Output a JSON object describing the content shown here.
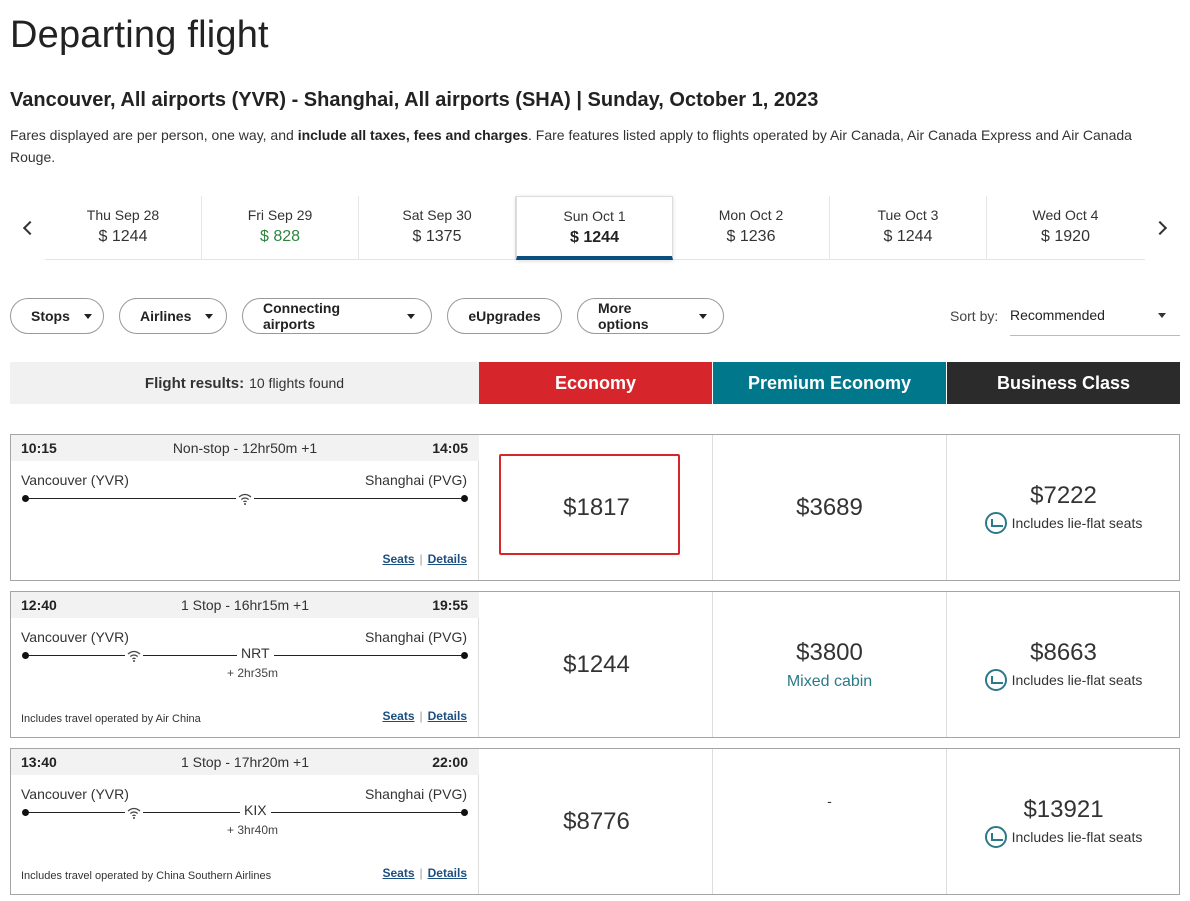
{
  "page": {
    "title": "Departing flight",
    "route_heading": "Vancouver, All airports (YVR) - Shanghai, All airports (SHA) | Sunday, October 1, 2023",
    "fare_note_before": "Fares displayed are per person, one way, and ",
    "fare_note_bold": "include all taxes, fees and charges",
    "fare_note_after": ". Fare features listed apply to flights operated by Air Canada, Air Canada Express and Air Canada Rouge."
  },
  "date_tabs": [
    {
      "date": "Thu Sep 28",
      "price": "$ 1244",
      "cheapest": false,
      "active": false
    },
    {
      "date": "Fri Sep 29",
      "price": "$ 828",
      "cheapest": true,
      "active": false
    },
    {
      "date": "Sat Sep 30",
      "price": "$ 1375",
      "cheapest": false,
      "active": false
    },
    {
      "date": "Sun Oct 1",
      "price": "$ 1244",
      "cheapest": false,
      "active": true
    },
    {
      "date": "Mon Oct 2",
      "price": "$ 1236",
      "cheapest": false,
      "active": false
    },
    {
      "date": "Tue Oct 3",
      "price": "$ 1244",
      "cheapest": false,
      "active": false
    },
    {
      "date": "Wed Oct 4",
      "price": "$ 1920",
      "cheapest": false,
      "active": false
    }
  ],
  "filters": {
    "stops": "Stops",
    "airlines": "Airlines",
    "connecting": "Connecting airports",
    "eupgrades": "eUpgrades",
    "more": "More options"
  },
  "sort": {
    "label": "Sort by:",
    "value": "Recommended"
  },
  "results": {
    "label": "Flight results:",
    "count": "10 flights found"
  },
  "cabins": {
    "economy": "Economy",
    "premium": "Premium Economy",
    "business": "Business Class",
    "economy_color": "#d7262b",
    "premium_color": "#00778b",
    "business_color": "#2b2b2b"
  },
  "links": {
    "seats": "Seats",
    "details": "Details",
    "sep": "|"
  },
  "lieflat_text": "Includes lie-flat seats",
  "flights": [
    {
      "dep": "10:15",
      "arr": "14:05",
      "summary": "Non-stop - 12hr50m +1",
      "origin": "Vancouver (YVR)",
      "dest": "Shanghai (PVG)",
      "stop": "",
      "layover": "",
      "operated": "",
      "economy": "$1817",
      "premium": "$3689",
      "premium_sub": "",
      "business": "$7222"
    },
    {
      "dep": "12:40",
      "arr": "19:55",
      "summary": "1 Stop - 16hr15m +1",
      "origin": "Vancouver (YVR)",
      "dest": "Shanghai (PVG)",
      "stop": "NRT",
      "layover": "+ 2hr35m",
      "operated": "Includes travel operated by Air China",
      "economy": "$1244",
      "premium": "$3800",
      "premium_sub": "Mixed cabin",
      "business": "$8663"
    },
    {
      "dep": "13:40",
      "arr": "22:00",
      "summary": "1 Stop - 17hr20m +1",
      "origin": "Vancouver (YVR)",
      "dest": "Shanghai (PVG)",
      "stop": "KIX",
      "layover": "+ 3hr40m",
      "operated": "Includes travel operated by China Southern Airlines",
      "economy": "$8776",
      "premium": "-",
      "premium_sub": "",
      "business": "$13921"
    }
  ]
}
